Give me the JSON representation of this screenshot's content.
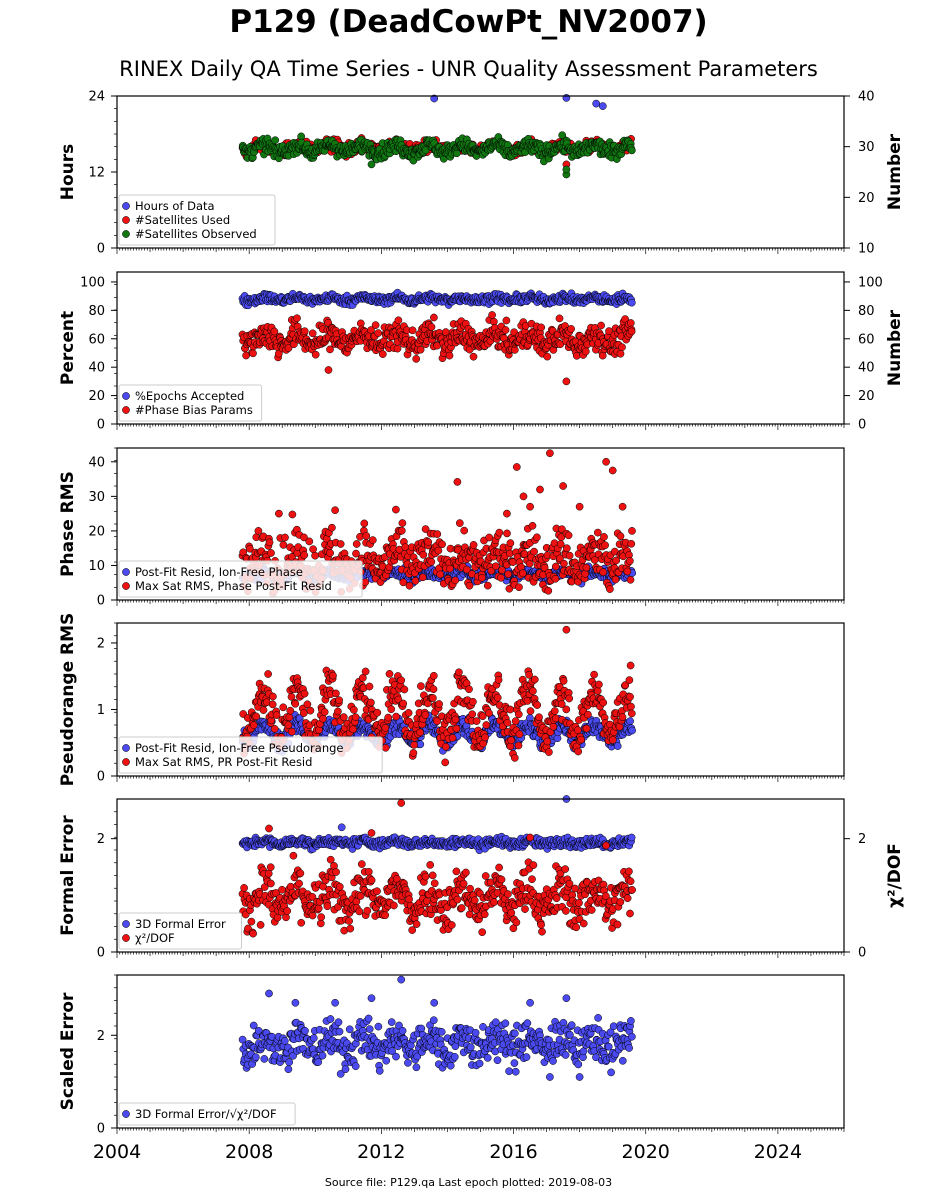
{
  "title": "P129 (DeadCowPt_NV2007)",
  "subtitle": "RINEX Daily QA Time Series - UNR Quality Assessment Parameters",
  "footer": "Source file: P129.qa Last epoch plotted: 2019-08-03",
  "colors": {
    "blue": "#4a4af0",
    "red": "#ee1111",
    "green": "#117711"
  },
  "chart_data": [
    {
      "type": "scatter",
      "xlim": [
        2004,
        2026
      ],
      "x_ticks": [
        "2004",
        "2008",
        "2012",
        "2016",
        "2020",
        "2024"
      ],
      "ylabel": "Hours",
      "ylim": [
        0,
        24
      ],
      "y_ticks": [
        "0",
        "12",
        "24"
      ],
      "y2label": "Number",
      "y2lim": [
        10,
        40
      ],
      "y2_ticks": [
        "10",
        "20",
        "30",
        "40"
      ],
      "legend_position": "lower-left",
      "series": [
        {
          "name": "Hours of Data",
          "color": "blue",
          "axis": "left",
          "base": 24,
          "amp": 0,
          "noise": 0.1,
          "outliers": [
            [
              2018.5,
              22.8
            ],
            [
              2018.7,
              22.4
            ],
            [
              2013.6,
              23.6
            ],
            [
              2017.6,
              23.7
            ]
          ]
        },
        {
          "name": "#Satellites Used",
          "color": "red",
          "axis": "right",
          "base": 29.8,
          "amp": 0.6,
          "noise": 0.6,
          "outliers": [
            [
              2017.6,
              26.5
            ],
            [
              2010.4,
              30.0
            ]
          ]
        },
        {
          "name": "#Satellites Observed",
          "color": "green",
          "axis": "right",
          "base": 29.6,
          "amp": 0.7,
          "noise": 0.7,
          "outliers": [
            [
              2017.6,
              24.5
            ],
            [
              2017.6,
              25.5
            ],
            [
              2011.7,
              26.5
            ]
          ]
        }
      ]
    },
    {
      "type": "scatter",
      "xlim": [
        2004,
        2026
      ],
      "x_ticks": [
        "2004",
        "2008",
        "2012",
        "2016",
        "2020",
        "2024"
      ],
      "ylabel": "Percent",
      "ylim": [
        0,
        107
      ],
      "y_ticks": [
        "0",
        "20",
        "40",
        "60",
        "80",
        "100"
      ],
      "y2label": "Number",
      "y2lim": [
        0,
        107
      ],
      "y2_ticks": [
        "0",
        "20",
        "40",
        "60",
        "80",
        "100"
      ],
      "legend_position": "lower-left",
      "series": [
        {
          "name": "%Epochs Accepted",
          "color": "blue",
          "axis": "left",
          "base": 88,
          "amp": 1,
          "noise": 1.5,
          "outliers": []
        },
        {
          "name": "#Phase Bias Params",
          "color": "red",
          "axis": "right",
          "base": 60,
          "amp": 4,
          "noise": 5,
          "outliers": [
            [
              2010.4,
              38
            ],
            [
              2017.6,
              30
            ]
          ]
        }
      ]
    },
    {
      "type": "scatter",
      "xlim": [
        2004,
        2026
      ],
      "x_ticks": [
        "2004",
        "2008",
        "2012",
        "2016",
        "2020",
        "2024"
      ],
      "ylabel": "Phase RMS",
      "ylim": [
        0,
        44
      ],
      "y_ticks": [
        "0",
        "10",
        "20",
        "30",
        "40"
      ],
      "legend_position": "lower-left",
      "series": [
        {
          "name": "Post-Fit Resid, Ion-Free Phase",
          "color": "blue",
          "axis": "left",
          "base": 7.5,
          "amp": 0.7,
          "noise": 0.8,
          "outliers": []
        },
        {
          "name": "Max Sat RMS, Phase Post-Fit Resid",
          "color": "red",
          "axis": "left",
          "base": 11.5,
          "amp": 2.5,
          "noise": 4,
          "outliers": [
            [
              2017.1,
              42.5
            ],
            [
              2018.8,
              40
            ],
            [
              2019.0,
              37.5
            ],
            [
              2016.1,
              38.5
            ],
            [
              2014.3,
              34.2
            ],
            [
              2017.5,
              33
            ],
            [
              2016.8,
              32
            ],
            [
              2016.3,
              30
            ],
            [
              2018.0,
              27
            ],
            [
              2019.3,
              27
            ],
            [
              2016.5,
              27
            ],
            [
              2015.8,
              25
            ],
            [
              2008.9,
              25
            ],
            [
              2010.6,
              26
            ]
          ]
        }
      ]
    },
    {
      "type": "scatter",
      "xlim": [
        2004,
        2026
      ],
      "x_ticks": [
        "2004",
        "2008",
        "2012",
        "2016",
        "2020",
        "2024"
      ],
      "ylabel": "Pseudorange RMS",
      "ylim": [
        0,
        2.3
      ],
      "y_ticks": [
        "0",
        "1",
        "2"
      ],
      "legend_position": "lower-left",
      "series": [
        {
          "name": "Post-Fit Resid, Ion-Free Pseudorange",
          "color": "blue",
          "axis": "left",
          "base": 0.65,
          "amp": 0.12,
          "noise": 0.07,
          "outliers": []
        },
        {
          "name": "Max Sat RMS, PR Post-Fit Resid",
          "color": "red",
          "axis": "left",
          "base": 0.95,
          "amp": 0.35,
          "noise": 0.18,
          "outliers": [
            [
              2017.6,
              2.2
            ]
          ]
        }
      ]
    },
    {
      "type": "scatter",
      "xlim": [
        2004,
        2026
      ],
      "x_ticks": [
        "2004",
        "2008",
        "2012",
        "2016",
        "2020",
        "2024"
      ],
      "ylabel": "Formal Error",
      "ylim": [
        0,
        2.7
      ],
      "y_ticks": [
        "0",
        "2"
      ],
      "y2label": "χ²/DOF",
      "y2lim": [
        0,
        2.7
      ],
      "y2_ticks": [
        "0",
        "2"
      ],
      "legend_position": "lower-left",
      "series": [
        {
          "name": "3D Formal Error",
          "color": "blue",
          "axis": "left",
          "base": 1.93,
          "amp": 0.03,
          "noise": 0.04,
          "outliers": [
            [
              2010.8,
              2.2
            ],
            [
              2017.6,
              2.7
            ]
          ]
        },
        {
          "name": "χ²/DOF",
          "color": "red",
          "axis": "right",
          "base": 0.95,
          "amp": 0.2,
          "noise": 0.22,
          "outliers": [
            [
              2012.6,
              2.63
            ],
            [
              2008.6,
              2.18
            ],
            [
              2011.7,
              2.1
            ],
            [
              2016.5,
              2.02
            ],
            [
              2018.8,
              1.88
            ]
          ]
        }
      ]
    },
    {
      "type": "scatter",
      "xlim": [
        2004,
        2026
      ],
      "x_ticks": [
        "2004",
        "2008",
        "2012",
        "2016",
        "2020",
        "2024"
      ],
      "ylabel": "Scaled Error",
      "ylim": [
        0,
        3.3
      ],
      "y_ticks": [
        "0",
        "2"
      ],
      "legend_position": "lower-left",
      "series": [
        {
          "name": "3D Formal Error/√χ²/DOF",
          "color": "blue",
          "axis": "left",
          "base": 1.82,
          "amp": 0.15,
          "noise": 0.22,
          "outliers": [
            [
              2012.6,
              3.2
            ],
            [
              2008.6,
              2.9
            ],
            [
              2017.6,
              2.8
            ],
            [
              2011.7,
              2.8
            ],
            [
              2009.4,
              2.7
            ],
            [
              2010.6,
              2.7
            ],
            [
              2013.6,
              2.7
            ],
            [
              2016.5,
              2.7
            ],
            [
              2017.1,
              1.1
            ]
          ]
        }
      ]
    }
  ],
  "data_range": {
    "start": 2007.8,
    "end": 2019.58
  }
}
